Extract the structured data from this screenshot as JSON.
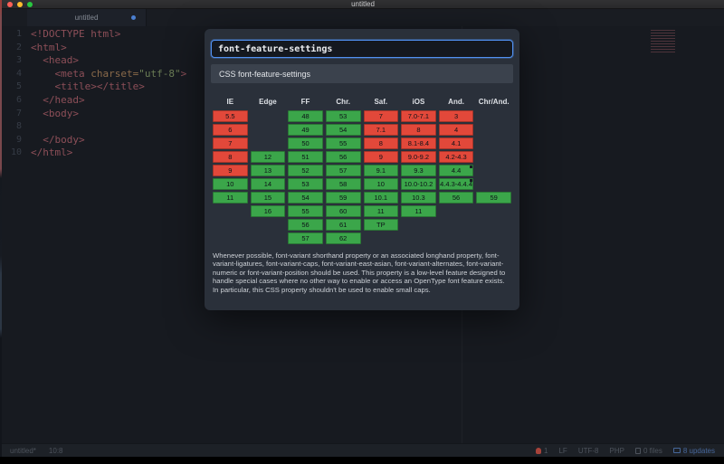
{
  "window": {
    "title": "untitled"
  },
  "tabbar": {
    "active_tab": "untitled"
  },
  "editor": {
    "lines": [
      {
        "n": "1",
        "seg": [
          {
            "t": "<!DOCTYPE html>",
            "c": "tag"
          }
        ]
      },
      {
        "n": "2",
        "seg": [
          {
            "t": "<html>",
            "c": "tag"
          }
        ]
      },
      {
        "n": "3",
        "seg": [
          {
            "t": "  ",
            "c": "plain"
          },
          {
            "t": "<head>",
            "c": "tag"
          }
        ]
      },
      {
        "n": "4",
        "seg": [
          {
            "t": "    ",
            "c": "plain"
          },
          {
            "t": "<meta ",
            "c": "tag"
          },
          {
            "t": "charset=",
            "c": "attr"
          },
          {
            "t": "\"utf-8\"",
            "c": "str"
          },
          {
            "t": ">",
            "c": "tag"
          }
        ]
      },
      {
        "n": "5",
        "seg": [
          {
            "t": "    ",
            "c": "plain"
          },
          {
            "t": "<title></title>",
            "c": "tag"
          }
        ]
      },
      {
        "n": "6",
        "seg": [
          {
            "t": "  ",
            "c": "plain"
          },
          {
            "t": "</head>",
            "c": "tag"
          }
        ]
      },
      {
        "n": "7",
        "seg": [
          {
            "t": "  ",
            "c": "plain"
          },
          {
            "t": "<body>",
            "c": "tag"
          }
        ]
      },
      {
        "n": "8",
        "seg": [
          {
            "t": "",
            "c": "plain"
          }
        ]
      },
      {
        "n": "9",
        "seg": [
          {
            "t": "  ",
            "c": "plain"
          },
          {
            "t": "</body>",
            "c": "tag"
          }
        ]
      },
      {
        "n": "10",
        "seg": [
          {
            "t": "</html>",
            "c": "tag"
          }
        ]
      }
    ]
  },
  "statusbar": {
    "file": "untitled*",
    "cursor": "10:8",
    "errors": "1",
    "line_ending": "LF",
    "encoding": "UTF-8",
    "syntax": "PHP",
    "files": "0 files",
    "updates": "8 updates"
  },
  "popup": {
    "search_value": "font-feature-settings",
    "result_label": "CSS font-feature-settings",
    "table": {
      "columns": [
        "IE",
        "Edge",
        "FF",
        "Chr.",
        "Saf.",
        "iOS",
        "And.",
        "Chr/And."
      ],
      "rows": [
        [
          {
            "v": "5.5",
            "s": "n"
          },
          null,
          {
            "v": "48",
            "s": "y"
          },
          {
            "v": "53",
            "s": "y"
          },
          {
            "v": "7",
            "s": "n"
          },
          {
            "v": "7.0-7.1",
            "s": "n"
          },
          {
            "v": "3",
            "s": "n"
          },
          null
        ],
        [
          {
            "v": "6",
            "s": "n"
          },
          null,
          {
            "v": "49",
            "s": "y"
          },
          {
            "v": "54",
            "s": "y"
          },
          {
            "v": "7.1",
            "s": "n"
          },
          {
            "v": "8",
            "s": "n"
          },
          {
            "v": "4",
            "s": "n"
          },
          null
        ],
        [
          {
            "v": "7",
            "s": "n"
          },
          null,
          {
            "v": "50",
            "s": "y"
          },
          {
            "v": "55",
            "s": "y"
          },
          {
            "v": "8",
            "s": "n"
          },
          {
            "v": "8.1-8.4",
            "s": "n"
          },
          {
            "v": "4.1",
            "s": "n"
          },
          null
        ],
        [
          {
            "v": "8",
            "s": "n"
          },
          {
            "v": "12",
            "s": "y"
          },
          {
            "v": "51",
            "s": "y"
          },
          {
            "v": "56",
            "s": "y"
          },
          {
            "v": "9",
            "s": "n"
          },
          {
            "v": "9.0-9.2",
            "s": "n"
          },
          {
            "v": "4.2-4.3",
            "s": "n"
          },
          null
        ],
        [
          {
            "v": "9",
            "s": "n"
          },
          {
            "v": "13",
            "s": "y"
          },
          {
            "v": "52",
            "s": "y"
          },
          {
            "v": "57",
            "s": "y"
          },
          {
            "v": "9.1",
            "s": "y"
          },
          {
            "v": "9.3",
            "s": "y"
          },
          {
            "v": "4.4",
            "s": "y",
            "note": true
          },
          null
        ],
        [
          {
            "v": "10",
            "s": "y"
          },
          {
            "v": "14",
            "s": "y"
          },
          {
            "v": "53",
            "s": "y"
          },
          {
            "v": "58",
            "s": "y"
          },
          {
            "v": "10",
            "s": "y"
          },
          {
            "v": "10.0-10.2",
            "s": "y"
          },
          {
            "v": "4.4.3-4.4.4",
            "s": "y",
            "note": true
          },
          null
        ],
        [
          {
            "v": "11",
            "s": "y"
          },
          {
            "v": "15",
            "s": "y"
          },
          {
            "v": "54",
            "s": "y"
          },
          {
            "v": "59",
            "s": "y"
          },
          {
            "v": "10.1",
            "s": "y"
          },
          {
            "v": "10.3",
            "s": "y"
          },
          {
            "v": "56",
            "s": "y"
          },
          {
            "v": "59",
            "s": "y"
          }
        ],
        [
          null,
          {
            "v": "16",
            "s": "y"
          },
          {
            "v": "55",
            "s": "y"
          },
          {
            "v": "60",
            "s": "y"
          },
          {
            "v": "11",
            "s": "y"
          },
          {
            "v": "11",
            "s": "y"
          },
          null,
          null
        ],
        [
          null,
          null,
          {
            "v": "56",
            "s": "y"
          },
          {
            "v": "61",
            "s": "y"
          },
          {
            "v": "TP",
            "s": "y"
          },
          null,
          null,
          null
        ],
        [
          null,
          null,
          {
            "v": "57",
            "s": "y"
          },
          {
            "v": "62",
            "s": "y"
          },
          null,
          null,
          null,
          null
        ]
      ]
    },
    "description": "Whenever possible, font-variant shorthand property or an associated longhand property, font-variant-ligatures, font-variant-caps, font-variant-east-asian, font-variant-alternates, font-variant-numeric or font-variant-position should be used. This property is a low-level feature designed to handle special cases where no other way to enable or access an OpenType font feature exists. In particular, this CSS property shouldn't be used to enable small caps."
  },
  "colors": {
    "supported": "#3ba64a",
    "unsupported": "#e2483a",
    "accent": "#5191f2"
  }
}
